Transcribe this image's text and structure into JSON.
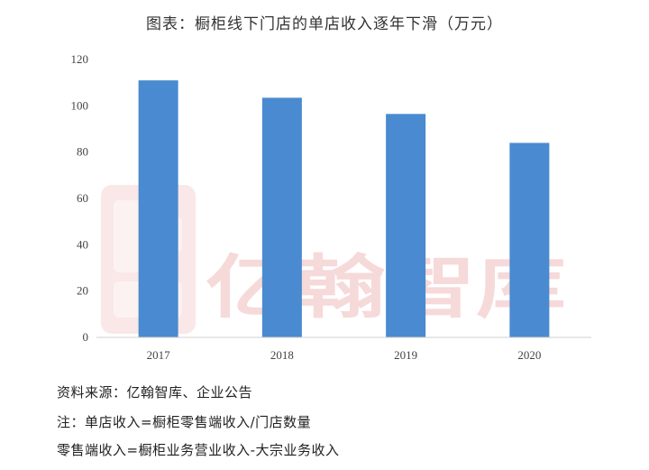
{
  "chart_data": {
    "type": "bar",
    "title": "图表：橱柜线下门店的单店收入逐年下滑（万元）",
    "categories": [
      "2017",
      "2018",
      "2019",
      "2020"
    ],
    "values": [
      111,
      103.5,
      96.5,
      84
    ],
    "y_ticks": [
      "0",
      "20",
      "40",
      "60",
      "80",
      "100",
      "120"
    ],
    "ylim": [
      0,
      120
    ],
    "xlabel": "",
    "ylabel": "",
    "grid": false,
    "bar_color": "#4a8ad0"
  },
  "watermark": {
    "text": "亿翰智库"
  },
  "notes": {
    "source": "资料来源：亿翰智库、企业公告",
    "note1": "注：单店收入=橱柜零售端收入/门店数量",
    "note2": "零售端收入=橱柜业务营业收入-大宗业务收入"
  }
}
